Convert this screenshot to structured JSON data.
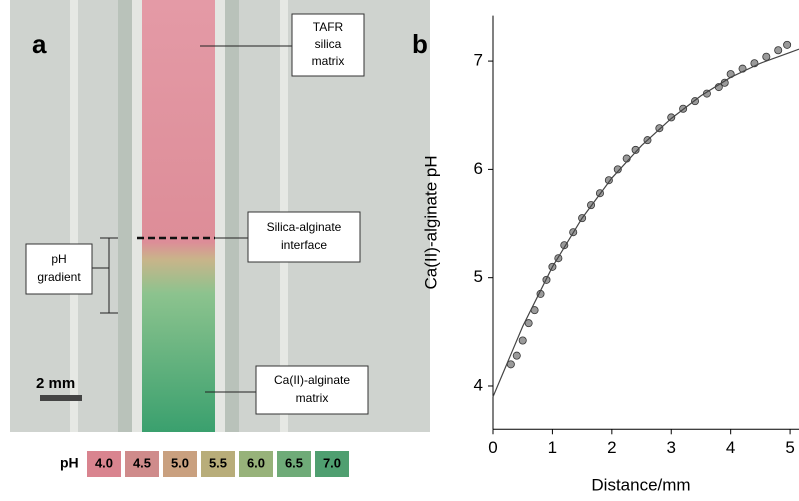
{
  "panel_a": {
    "label": "a",
    "callouts": {
      "top": [
        "TAFR",
        "silica",
        "matrix"
      ],
      "interface": [
        "Silica-alginate",
        "interface"
      ],
      "gradient": [
        "pH",
        "gradient"
      ],
      "bottom": [
        "Ca(II)-alginate",
        "matrix"
      ]
    },
    "scale_bar": "2 mm",
    "ph_scale": {
      "title": "pH",
      "labels": [
        "4.0",
        "4.5",
        "5.0",
        "5.5",
        "6.0",
        "6.5",
        "7.0"
      ]
    }
  },
  "chart_data": {
    "type": "scatter",
    "panel_label": "b",
    "x_label": "Distance/mm",
    "y_label": "Ca(II)-alginate pH",
    "xlim": [
      0,
      5.15
    ],
    "ylim": [
      3.6,
      7.42
    ],
    "xticks": [
      0,
      1,
      2,
      3,
      4,
      5
    ],
    "yticks": [
      4,
      5,
      6,
      7
    ],
    "points": {
      "color": "#9a9a9a",
      "x": [
        0.3,
        0.4,
        0.5,
        0.6,
        0.7,
        0.8,
        0.9,
        1.0,
        1.1,
        1.2,
        1.35,
        1.5,
        1.65,
        1.8,
        1.95,
        2.1,
        2.25,
        2.4,
        2.6,
        2.8,
        3.0,
        3.2,
        3.4,
        3.6,
        3.8,
        3.9,
        4.0,
        4.2,
        4.4,
        4.6,
        4.8,
        4.95
      ],
      "y": [
        4.2,
        4.28,
        4.42,
        4.58,
        4.7,
        4.85,
        4.98,
        5.1,
        5.18,
        5.3,
        5.42,
        5.55,
        5.67,
        5.78,
        5.9,
        6.0,
        6.1,
        6.18,
        6.27,
        6.38,
        6.48,
        6.56,
        6.63,
        6.7,
        6.76,
        6.8,
        6.88,
        6.93,
        6.98,
        7.04,
        7.1,
        7.15
      ]
    },
    "fit": {
      "color": "#444444",
      "x": [
        0,
        0.5,
        1,
        1.5,
        2,
        2.5,
        3,
        3.5,
        4,
        4.5,
        5,
        5.15
      ],
      "y": [
        3.9,
        4.55,
        5.1,
        5.55,
        5.92,
        6.22,
        6.47,
        6.68,
        6.85,
        6.98,
        7.08,
        7.11
      ]
    }
  }
}
